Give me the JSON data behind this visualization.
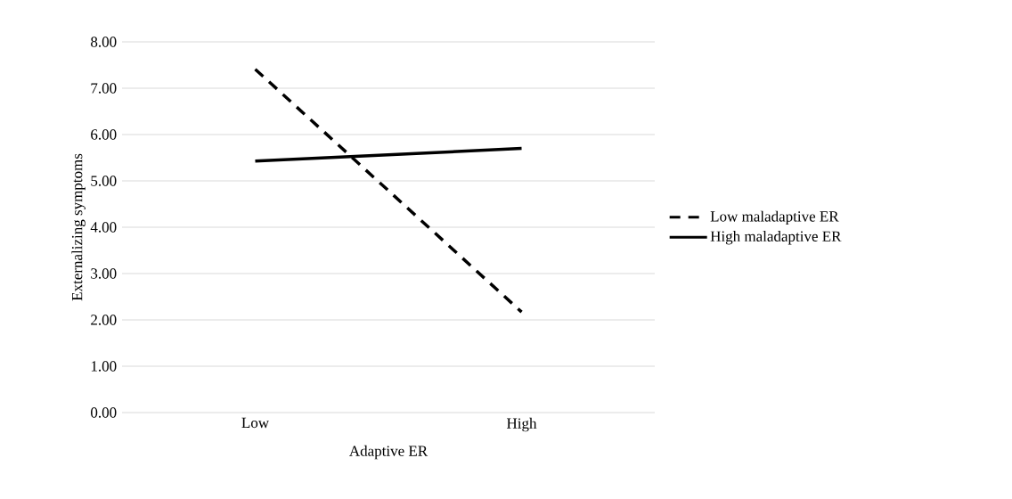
{
  "chart_data": {
    "type": "line",
    "xlabel": "Adaptive ER",
    "ylabel": "Externalizing symptoms",
    "categories": [
      "Low",
      "High"
    ],
    "series": [
      {
        "name": "Low maladaptive ER",
        "color": "#000000",
        "values": [
          7.41,
          2.17
        ],
        "line_style": "dashed"
      },
      {
        "name": "High maladaptive ER",
        "color": "#000000",
        "values": [
          5.43,
          5.7
        ],
        "line_style": "solid"
      }
    ],
    "ylim": [
      0,
      8
    ],
    "yticks": [
      {
        "value": 0,
        "label": "0.00"
      },
      {
        "value": 1,
        "label": "1.00"
      },
      {
        "value": 2,
        "label": "2.00"
      },
      {
        "value": 3,
        "label": "3.00"
      },
      {
        "value": 4,
        "label": "4.00"
      },
      {
        "value": 5,
        "label": "5.00"
      },
      {
        "value": 6,
        "label": "6.00"
      },
      {
        "value": 7,
        "label": "7.00"
      },
      {
        "value": 8,
        "label": "8.00"
      }
    ],
    "grid": "y",
    "legend": "right",
    "marker": "none"
  }
}
